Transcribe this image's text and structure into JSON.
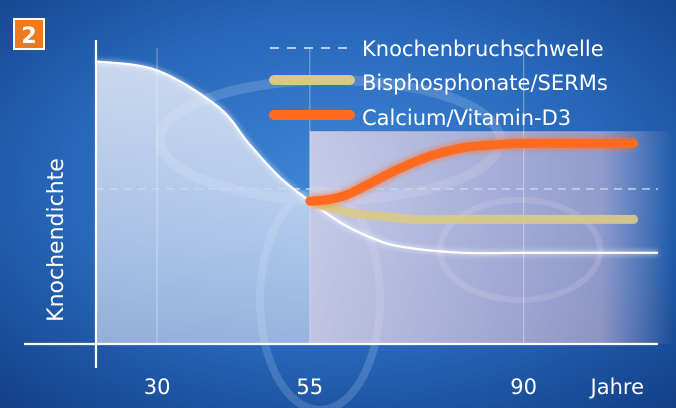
{
  "figure": {
    "badge": "2"
  },
  "chart_data": {
    "type": "line",
    "xlabel": "Jahre",
    "ylabel": "Knochendichte",
    "x_ticks": [
      30,
      55,
      90
    ],
    "xlim": [
      20,
      112
    ],
    "ylim": [
      0,
      100
    ],
    "legend": {
      "placement": "top-right",
      "entries": [
        {
          "key": "threshold",
          "label": "Knochenbruchschwelle",
          "style": "dashed",
          "color": "#c8d8f0"
        },
        {
          "key": "bisphosphonate",
          "label": "Bisphosphonate/SERMs",
          "style": "solid",
          "color": "#d8c98a"
        },
        {
          "key": "calcium",
          "label": "Calcium/Vitamin-D3",
          "style": "solid",
          "color": "#ff6a1f"
        }
      ]
    },
    "threshold": 51,
    "series": [
      {
        "key": "baseline",
        "color": "#ffffff",
        "x": [
          20,
          30,
          40,
          45,
          50,
          55,
          60,
          65,
          70,
          80,
          90,
          100,
          112
        ],
        "y": [
          93,
          90,
          78,
          66,
          55,
          47,
          40,
          35,
          32,
          30,
          30,
          30,
          30
        ]
      },
      {
        "key": "bisphosphonate",
        "name": "Bisphosphonate/SERMs",
        "color": "#d8c98a",
        "x": [
          55,
          58,
          62,
          67,
          72,
          80,
          90,
          100,
          108
        ],
        "y": [
          47,
          45,
          43,
          42,
          41,
          41,
          41,
          41,
          41
        ]
      },
      {
        "key": "calcium",
        "name": "Calcium/Vitamin-D3",
        "color": "#ff6a1f",
        "x": [
          55,
          58,
          61,
          65,
          70,
          75,
          80,
          85,
          90,
          100,
          108
        ],
        "y": [
          47,
          47.5,
          49,
          53,
          58,
          62,
          64.5,
          65.5,
          66,
          66,
          66
        ]
      }
    ]
  }
}
